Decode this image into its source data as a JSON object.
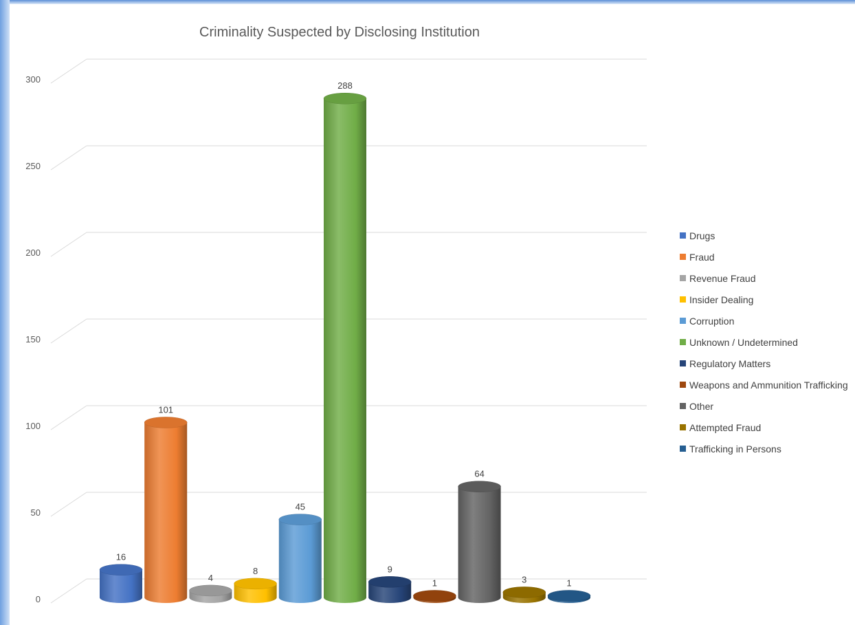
{
  "chart_data": {
    "type": "bar",
    "style": "3d-cylinder",
    "title": "Criminality Suspected by Disclosing Institution",
    "xlabel": "",
    "ylabel": "",
    "ylim": [
      0,
      300
    ],
    "yticks": [
      0,
      50,
      100,
      150,
      200,
      250,
      300
    ],
    "grid": true,
    "legend_position": "right",
    "categories": [
      "Drugs",
      "Fraud",
      "Revenue Fraud",
      "Insider Dealing",
      "Corruption",
      "Unknown / Undetermined",
      "Regulatory Matters",
      "Weapons and Ammunition Trafficking",
      "Other",
      "Attempted Fraud",
      "Trafficking in Persons"
    ],
    "values": [
      16,
      101,
      4,
      8,
      45,
      288,
      9,
      1,
      64,
      3,
      1
    ],
    "colors": [
      "#4472c4",
      "#ed7d31",
      "#a5a5a5",
      "#ffc000",
      "#5b9bd5",
      "#70ad47",
      "#264478",
      "#9e480e",
      "#636363",
      "#997300",
      "#255e91"
    ]
  }
}
